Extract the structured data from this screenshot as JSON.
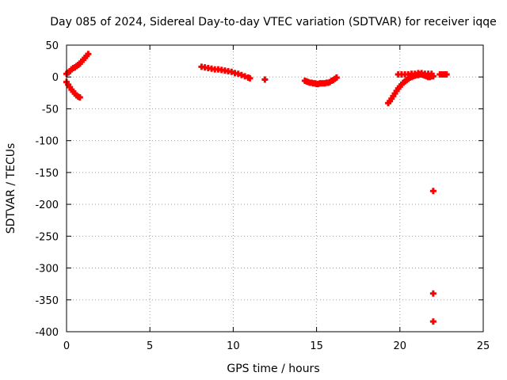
{
  "chart_data": {
    "type": "scatter",
    "title": "Day 085 of 2024, Sidereal Day-to-day VTEC variation (SDTVAR) for receiver iqqe",
    "xlabel": "GPS time / hours",
    "ylabel": "SDTVAR / TECUs",
    "xlim": [
      0,
      25
    ],
    "ylim": [
      -400,
      50
    ],
    "xticks": [
      0,
      5,
      10,
      15,
      20,
      25
    ],
    "yticks": [
      50,
      0,
      -50,
      -100,
      -150,
      -200,
      -250,
      -300,
      -350,
      -400
    ],
    "grid": true,
    "marker": "plus",
    "color": "#ff0000",
    "series": [
      {
        "name": "SDTVAR",
        "points": [
          [
            0.0,
            5
          ],
          [
            0.1,
            7
          ],
          [
            0.2,
            9
          ],
          [
            0.3,
            12
          ],
          [
            0.4,
            14
          ],
          [
            0.5,
            15
          ],
          [
            0.6,
            17
          ],
          [
            0.7,
            19
          ],
          [
            0.8,
            21
          ],
          [
            0.9,
            24
          ],
          [
            1.0,
            27
          ],
          [
            1.1,
            30
          ],
          [
            1.2,
            33
          ],
          [
            1.3,
            36
          ],
          [
            0.0,
            -8
          ],
          [
            0.1,
            -12
          ],
          [
            0.2,
            -16
          ],
          [
            0.3,
            -20
          ],
          [
            0.4,
            -23
          ],
          [
            0.5,
            -26
          ],
          [
            0.6,
            -29
          ],
          [
            0.7,
            -31
          ],
          [
            0.8,
            -32
          ],
          [
            8.1,
            16
          ],
          [
            8.3,
            15
          ],
          [
            8.5,
            14
          ],
          [
            8.7,
            13
          ],
          [
            8.9,
            12
          ],
          [
            9.1,
            12
          ],
          [
            9.3,
            11
          ],
          [
            9.5,
            10
          ],
          [
            9.7,
            9
          ],
          [
            9.9,
            8
          ],
          [
            10.1,
            6
          ],
          [
            10.3,
            5
          ],
          [
            10.5,
            3
          ],
          [
            10.7,
            1
          ],
          [
            10.9,
            -1
          ],
          [
            11.0,
            -2
          ],
          [
            11.9,
            -4
          ],
          [
            14.3,
            -6
          ],
          [
            14.4,
            -7
          ],
          [
            14.5,
            -8
          ],
          [
            14.6,
            -9
          ],
          [
            14.7,
            -9
          ],
          [
            14.8,
            -10
          ],
          [
            14.9,
            -10
          ],
          [
            15.0,
            -11
          ],
          [
            15.1,
            -11
          ],
          [
            15.2,
            -10
          ],
          [
            15.3,
            -10
          ],
          [
            15.4,
            -10
          ],
          [
            15.5,
            -10
          ],
          [
            15.6,
            -9
          ],
          [
            15.7,
            -9
          ],
          [
            15.8,
            -8
          ],
          [
            15.9,
            -6
          ],
          [
            16.0,
            -5
          ],
          [
            16.1,
            -3
          ],
          [
            16.2,
            -1
          ],
          [
            19.3,
            -41
          ],
          [
            19.4,
            -38
          ],
          [
            19.5,
            -34
          ],
          [
            19.6,
            -30
          ],
          [
            19.7,
            -26
          ],
          [
            19.8,
            -22
          ],
          [
            19.9,
            -18
          ],
          [
            20.0,
            -15
          ],
          [
            20.1,
            -12
          ],
          [
            20.2,
            -9
          ],
          [
            20.3,
            -7
          ],
          [
            20.4,
            -5
          ],
          [
            20.5,
            -3
          ],
          [
            20.6,
            -1
          ],
          [
            20.7,
            0
          ],
          [
            20.8,
            1
          ],
          [
            20.9,
            2
          ],
          [
            21.0,
            3
          ],
          [
            21.1,
            3
          ],
          [
            21.2,
            4
          ],
          [
            21.3,
            4
          ],
          [
            21.4,
            3
          ],
          [
            21.5,
            2
          ],
          [
            21.6,
            1
          ],
          [
            21.7,
            0
          ],
          [
            21.8,
            0
          ],
          [
            21.9,
            1
          ],
          [
            22.0,
            1
          ],
          [
            19.9,
            4
          ],
          [
            20.1,
            4
          ],
          [
            20.3,
            4
          ],
          [
            20.5,
            4
          ],
          [
            20.7,
            5
          ],
          [
            20.9,
            5
          ],
          [
            21.1,
            6
          ],
          [
            21.3,
            6
          ],
          [
            21.5,
            5
          ],
          [
            21.7,
            5
          ],
          [
            21.9,
            5
          ],
          [
            22.4,
            4
          ],
          [
            22.5,
            4
          ],
          [
            22.6,
            4
          ],
          [
            22.7,
            4
          ],
          [
            22.8,
            4
          ],
          [
            22.0,
            -179
          ],
          [
            22.0,
            -340
          ],
          [
            22.0,
            -384
          ]
        ]
      }
    ]
  }
}
